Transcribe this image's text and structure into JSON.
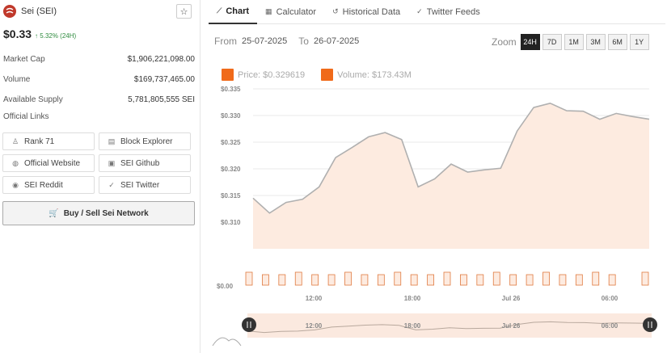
{
  "coin": {
    "name": "Sei (SEI)",
    "price": "$0.33",
    "change": "↑ 5.32% (24H)"
  },
  "stats": [
    {
      "label": "Market Cap",
      "value": "$1,906,221,098.00"
    },
    {
      "label": "Volume",
      "value": "$169,737,465.00"
    },
    {
      "label": "Available Supply",
      "value": "5,781,805,555 SEI"
    }
  ],
  "links": {
    "title": "Official Links",
    "buttons": [
      {
        "label": "Rank 71",
        "icon": "rank-icon"
      },
      {
        "label": "Block Explorer",
        "icon": "document-icon"
      },
      {
        "label": "Official Website",
        "icon": "globe-icon"
      },
      {
        "label": "SEI Github",
        "icon": "github-icon"
      },
      {
        "label": "SEI Reddit",
        "icon": "reddit-icon"
      },
      {
        "label": "SEI Twitter",
        "icon": "twitter-icon"
      }
    ],
    "buy_label": "Buy / Sell Sei Network"
  },
  "tabs": [
    {
      "label": "Chart",
      "icon": "line-chart-icon",
      "active": true
    },
    {
      "label": "Calculator",
      "icon": "calculator-icon"
    },
    {
      "label": "Historical Data",
      "icon": "history-icon"
    },
    {
      "label": "Twitter Feeds",
      "icon": "twitter-icon"
    }
  ],
  "range": {
    "from_label": "From",
    "from_value": "25-07-2025",
    "to_label": "To",
    "to_value": "26-07-2025"
  },
  "zoom": {
    "label": "Zoom",
    "options": [
      "24H",
      "7D",
      "1M",
      "3M",
      "6M",
      "1Y"
    ],
    "selected": "24H"
  },
  "legend": {
    "price": "Price: $0.329619",
    "volume": "Volume: $173.43M",
    "color": "#f06a1a"
  },
  "chart_data": {
    "type": "area",
    "y_ticks": [
      "$0.335",
      "$0.330",
      "$0.325",
      "$0.320",
      "$0.315",
      "$0.310"
    ],
    "y_tick_values": [
      0.335,
      0.33,
      0.325,
      0.32,
      0.315,
      0.31
    ],
    "volume_tick": "$0.00",
    "x_ticks": [
      "12:00",
      "18:00",
      "Jul 26",
      "06:00"
    ],
    "ylim": [
      0.305,
      0.335
    ],
    "price_series": [
      0.3145,
      0.3117,
      0.3137,
      0.3143,
      0.3166,
      0.3221,
      0.324,
      0.326,
      0.3268,
      0.3255,
      0.3166,
      0.3181,
      0.3209,
      0.3194,
      0.3198,
      0.3201,
      0.3271,
      0.3315,
      0.3323,
      0.3309,
      0.3308,
      0.3293,
      0.3304,
      0.3298,
      0.3293
    ],
    "volume_bars": 25,
    "fill_color": "#fdebe0",
    "line_color": "#b0b0b0"
  }
}
